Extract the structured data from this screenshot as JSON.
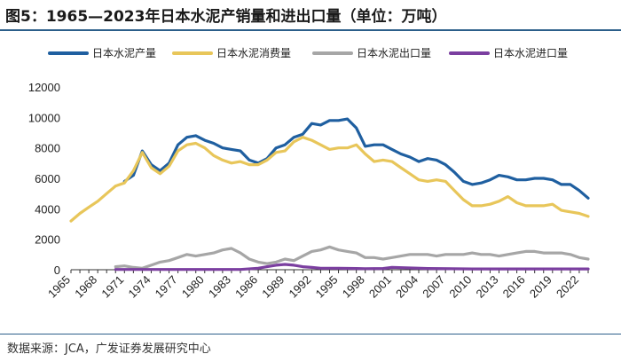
{
  "figure": {
    "title": "图5：1965—2023年日本水泥产销量和进出口量（单位：万吨）",
    "source": "数据来源：JCA，广发证券发展研究中心"
  },
  "chart_data": {
    "type": "line",
    "title": "图5：1965—2023年日本水泥产销量和进出口量（单位：万吨）",
    "xlabel": "",
    "ylabel": "",
    "ylim": [
      0,
      12000
    ],
    "xlim": [
      1965,
      2023
    ],
    "yticks": [
      0,
      2000,
      4000,
      6000,
      8000,
      10000,
      12000
    ],
    "xtick_labels": [
      "1965",
      "1968",
      "1971",
      "1974",
      "1977",
      "1980",
      "1983",
      "1986",
      "1989",
      "1992",
      "1995",
      "1998",
      "2001",
      "2004",
      "2007",
      "2010",
      "2013",
      "2016",
      "2019",
      "2022"
    ],
    "grid": false,
    "legend_position": "top",
    "series": [
      {
        "name": "日本水泥产量",
        "color": "#1f5fa0",
        "x": [
          1971,
          1972,
          1973,
          1974,
          1975,
          1976,
          1977,
          1978,
          1979,
          1980,
          1981,
          1982,
          1983,
          1984,
          1985,
          1986,
          1987,
          1988,
          1989,
          1990,
          1991,
          1992,
          1993,
          1994,
          1995,
          1996,
          1997,
          1998,
          1999,
          2000,
          2001,
          2002,
          2003,
          2004,
          2005,
          2006,
          2007,
          2008,
          2009,
          2010,
          2011,
          2012,
          2013,
          2014,
          2015,
          2016,
          2017,
          2018,
          2019,
          2020,
          2021,
          2022,
          2023
        ],
        "values": [
          5800,
          6200,
          7800,
          6900,
          6500,
          7000,
          8200,
          8700,
          8800,
          8500,
          8300,
          8000,
          7900,
          7800,
          7200,
          7000,
          7300,
          8000,
          8200,
          8700,
          8900,
          9600,
          9500,
          9800,
          9800,
          9900,
          9300,
          8100,
          8200,
          8200,
          7900,
          7600,
          7400,
          7100,
          7300,
          7200,
          6900,
          6400,
          5800,
          5600,
          5700,
          5900,
          6200,
          6100,
          5900,
          5900,
          6000,
          6000,
          5900,
          5600,
          5600,
          5200,
          4700
        ]
      },
      {
        "name": "日本水泥消费量",
        "color": "#e8c65a",
        "x": [
          1965,
          1966,
          1967,
          1968,
          1969,
          1970,
          1971,
          1972,
          1973,
          1974,
          1975,
          1976,
          1977,
          1978,
          1979,
          1980,
          1981,
          1982,
          1983,
          1984,
          1985,
          1986,
          1987,
          1988,
          1989,
          1990,
          1991,
          1992,
          1993,
          1994,
          1995,
          1996,
          1997,
          1998,
          1999,
          2000,
          2001,
          2002,
          2003,
          2004,
          2005,
          2006,
          2007,
          2008,
          2009,
          2010,
          2011,
          2012,
          2013,
          2014,
          2015,
          2016,
          2017,
          2018,
          2019,
          2020,
          2021,
          2022,
          2023
        ],
        "values": [
          3200,
          3700,
          4100,
          4500,
          5000,
          5500,
          5700,
          6500,
          7700,
          6700,
          6300,
          6800,
          7800,
          8200,
          8300,
          8000,
          7500,
          7200,
          7000,
          7100,
          6900,
          6900,
          7200,
          7700,
          7800,
          8400,
          8700,
          8500,
          8200,
          7900,
          8000,
          8000,
          8200,
          7600,
          7100,
          7200,
          7100,
          6700,
          6300,
          5900,
          5800,
          5900,
          5800,
          5200,
          4600,
          4200,
          4200,
          4300,
          4500,
          4800,
          4400,
          4200,
          4200,
          4200,
          4300,
          3900,
          3800,
          3700,
          3500
        ]
      },
      {
        "name": "日本水泥出口量",
        "color": "#a6a6a6",
        "x": [
          1970,
          1971,
          1972,
          1973,
          1974,
          1975,
          1976,
          1977,
          1978,
          1979,
          1980,
          1981,
          1982,
          1983,
          1984,
          1985,
          1986,
          1987,
          1988,
          1989,
          1990,
          1991,
          1992,
          1993,
          1994,
          1995,
          1996,
          1997,
          1998,
          1999,
          2000,
          2001,
          2002,
          2003,
          2004,
          2005,
          2006,
          2007,
          2008,
          2009,
          2010,
          2011,
          2012,
          2013,
          2014,
          2015,
          2016,
          2017,
          2018,
          2019,
          2020,
          2021,
          2022,
          2023
        ],
        "values": [
          200,
          250,
          150,
          100,
          300,
          500,
          600,
          800,
          1000,
          900,
          1000,
          1100,
          1300,
          1400,
          1100,
          700,
          500,
          400,
          500,
          700,
          600,
          900,
          1200,
          1300,
          1500,
          1300,
          1200,
          1100,
          800,
          800,
          700,
          800,
          900,
          1000,
          1000,
          1000,
          900,
          1000,
          1000,
          1000,
          1100,
          1000,
          1000,
          900,
          1000,
          1100,
          1200,
          1200,
          1100,
          1100,
          1100,
          1000,
          800,
          700
        ]
      },
      {
        "name": "日本水泥进口量",
        "color": "#7b3fa0",
        "x": [
          1970,
          1975,
          1980,
          1984,
          1986,
          1987,
          1988,
          1989,
          1990,
          1991,
          1992,
          1993,
          1995,
          1997,
          1998,
          2000,
          2001,
          2005,
          2010,
          2015,
          2020,
          2023
        ],
        "values": [
          20,
          20,
          20,
          20,
          100,
          200,
          300,
          350,
          300,
          200,
          150,
          100,
          100,
          80,
          70,
          80,
          150,
          80,
          50,
          50,
          50,
          50
        ]
      }
    ]
  }
}
